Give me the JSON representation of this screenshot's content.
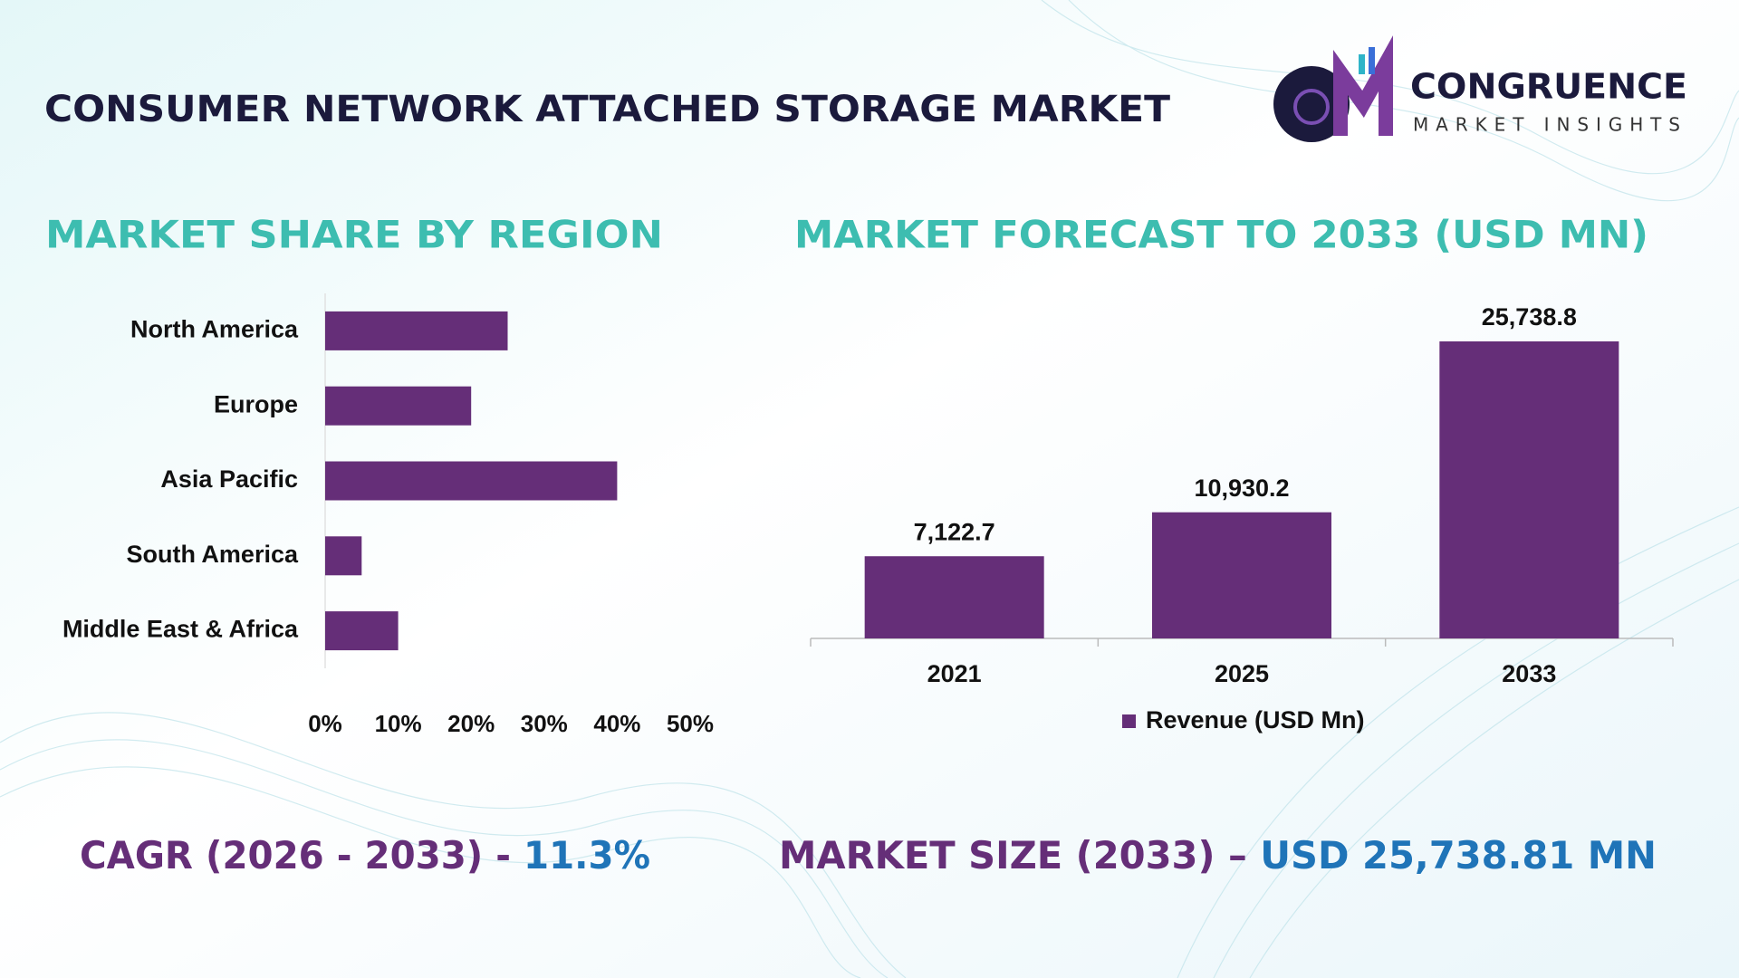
{
  "header": {
    "title": "CONSUMER NETWORK ATTACHED STORAGE MARKET",
    "logo_name": "CONGRUENCE",
    "logo_tagline": "MARKET INSIGHTS"
  },
  "chart_data": [
    {
      "type": "bar",
      "orientation": "horizontal",
      "title": "MARKET SHARE BY REGION",
      "categories": [
        "North America",
        "Europe",
        "Asia Pacific",
        "South America",
        "Middle East & Africa"
      ],
      "values": [
        25,
        20,
        40,
        5,
        10
      ],
      "color": "#652e78",
      "xlim": [
        0,
        50
      ],
      "xticks": [
        {
          "value": 0,
          "label": "0%"
        },
        {
          "value": 10,
          "label": "10%"
        },
        {
          "value": 20,
          "label": "20%"
        },
        {
          "value": 30,
          "label": "30%"
        },
        {
          "value": 40,
          "label": "40%"
        },
        {
          "value": 50,
          "label": "50%"
        }
      ]
    },
    {
      "type": "bar",
      "orientation": "vertical",
      "title": "MARKET FORECAST TO 2033 (USD MN)",
      "categories": [
        "2021",
        "2025",
        "2033"
      ],
      "series": [
        {
          "name": "Revenue (USD Mn)",
          "color": "#652e78",
          "values": [
            7122.7,
            10930.2,
            25738.8
          ],
          "value_labels": [
            "7,122.7",
            "10,930.2",
            "25,738.8"
          ]
        }
      ],
      "legend": "bottom"
    }
  ],
  "footer": {
    "cagr_label": "CAGR (2026 - 2033) - ",
    "cagr_value": "11.3%",
    "size_label": "MARKET SIZE (2033) – ",
    "size_value": "USD 25,738.81 MN"
  }
}
